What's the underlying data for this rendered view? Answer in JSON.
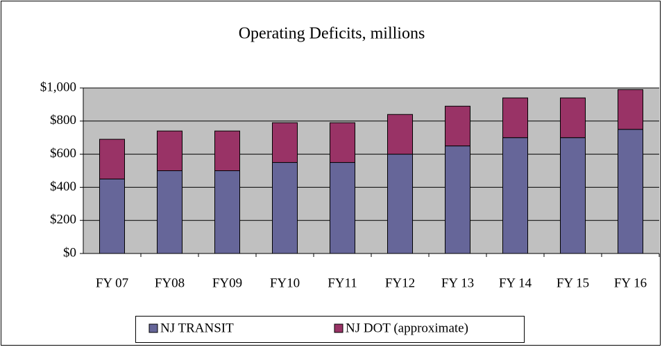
{
  "chart_data": {
    "type": "stacked_bar",
    "title": "Operating Deficits, millions",
    "categories": [
      "FY 07",
      "FY08",
      "FY09",
      "FY10",
      "FY11",
      "FY12",
      "FY 13",
      "FY 14",
      "FY 15",
      "FY 16"
    ],
    "series": [
      {
        "name": "NJ TRANSIT",
        "color": "#666699",
        "values": [
          450,
          500,
          500,
          550,
          550,
          600,
          650,
          700,
          700,
          750
        ]
      },
      {
        "name": "NJ DOT (approximate)",
        "color": "#993366",
        "values": [
          240,
          240,
          240,
          240,
          240,
          240,
          240,
          240,
          240,
          240
        ]
      }
    ],
    "ylim": [
      0,
      1000
    ],
    "yticks": [
      {
        "value": 0,
        "label": "$0"
      },
      {
        "value": 200,
        "label": "$200"
      },
      {
        "value": 400,
        "label": "$400"
      },
      {
        "value": 600,
        "label": "$600"
      },
      {
        "value": 800,
        "label": "$800"
      },
      {
        "value": 1000,
        "label": "$1,000"
      }
    ],
    "grid": true,
    "legend": "bottom"
  }
}
